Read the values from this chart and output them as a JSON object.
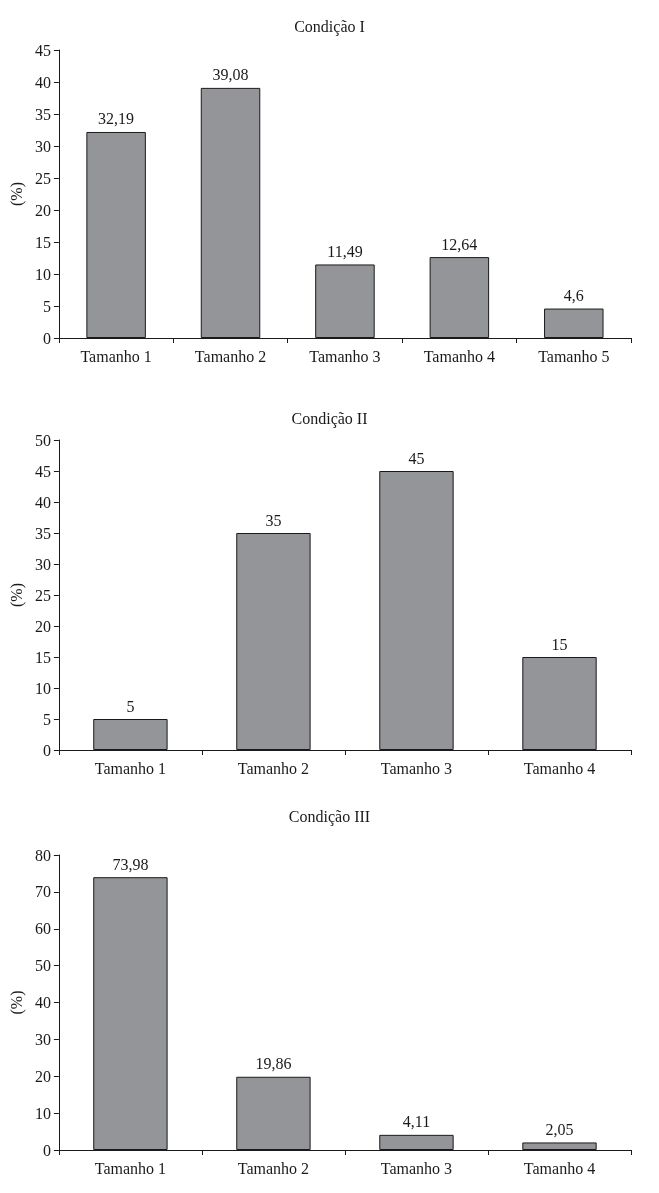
{
  "chart_data": [
    {
      "type": "bar",
      "title": "Condição I",
      "ylabel": "(%)",
      "categories": [
        "Tamanho 1",
        "Tamanho 2",
        "Tamanho 3",
        "Tamanho 4",
        "Tamanho 5"
      ],
      "values": [
        32.19,
        39.08,
        11.49,
        12.64,
        4.6
      ],
      "value_labels": [
        "32,19",
        "39,08",
        "11,49",
        "12,64",
        "4,6"
      ],
      "color": "#939598",
      "ylim": [
        0,
        45
      ],
      "yticks": [
        0,
        5,
        10,
        15,
        20,
        25,
        30,
        35,
        40,
        45
      ]
    },
    {
      "type": "bar",
      "title": "Condição II",
      "ylabel": "(%)",
      "categories": [
        "Tamanho 1",
        "Tamanho 2",
        "Tamanho 3",
        "Tamanho 4"
      ],
      "values": [
        5,
        35,
        45,
        15
      ],
      "value_labels": [
        "5",
        "35",
        "45",
        "15"
      ],
      "color": "#939598",
      "ylim": [
        0,
        50
      ],
      "yticks": [
        0,
        5,
        10,
        15,
        20,
        25,
        30,
        35,
        40,
        45,
        50
      ]
    },
    {
      "type": "bar",
      "title": "Condição III",
      "ylabel": "(%)",
      "categories": [
        "Tamanho 1",
        "Tamanho 2",
        "Tamanho 3",
        "Tamanho 4"
      ],
      "values": [
        73.98,
        19.86,
        4.11,
        2.05
      ],
      "value_labels": [
        "73,98",
        "19,86",
        "4,11",
        "2,05"
      ],
      "color": "#939598",
      "ylim": [
        0,
        80
      ],
      "yticks": [
        0,
        10,
        20,
        30,
        40,
        50,
        60,
        70,
        80
      ]
    }
  ]
}
